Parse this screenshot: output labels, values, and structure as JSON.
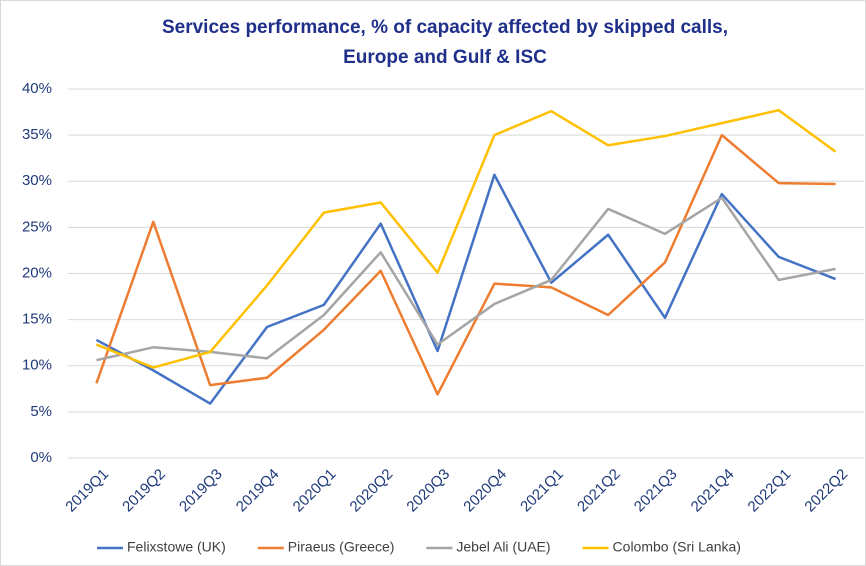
{
  "chart_data": {
    "type": "line",
    "title": [
      "Services performance, % of capacity affected by skipped calls,",
      "Europe and Gulf & ISC"
    ],
    "categories": [
      "2019Q1",
      "2019Q2",
      "2019Q3",
      "2019Q4",
      "2020Q1",
      "2020Q2",
      "2020Q3",
      "2020Q4",
      "2021Q1",
      "2021Q2",
      "2021Q3",
      "2021Q4",
      "2022Q1",
      "2022Q2"
    ],
    "series": [
      {
        "name": "Felixstowe (UK)",
        "color": "#4472c4",
        "values": [
          12.8,
          9.5,
          5.9,
          14.2,
          16.6,
          25.4,
          11.6,
          30.7,
          19.0,
          24.2,
          15.2,
          28.6,
          21.8,
          19.4
        ]
      },
      {
        "name": "Piraeus (Greece)",
        "color": "#ed7d31",
        "values": [
          8.1,
          25.6,
          7.9,
          8.7,
          13.9,
          20.3,
          6.9,
          18.9,
          18.5,
          15.5,
          21.2,
          35.0,
          29.8,
          29.7
        ]
      },
      {
        "name": "Jebel Ali (UAE)",
        "color": "#a5a5a5",
        "values": [
          10.6,
          12.0,
          11.5,
          10.8,
          15.5,
          22.3,
          12.3,
          16.7,
          19.3,
          27.0,
          24.3,
          28.2,
          19.3,
          20.5
        ]
      },
      {
        "name": "Colombo (Sri Lanka)",
        "color": "#ffc000",
        "values": [
          12.3,
          9.8,
          11.5,
          18.7,
          26.6,
          27.7,
          20.1,
          35.0,
          37.6,
          33.9,
          34.9,
          36.3,
          37.7,
          33.2
        ]
      }
    ],
    "ylim": [
      0,
      40
    ],
    "yticks": [
      {
        "value": 0,
        "label": "0%"
      },
      {
        "value": 5,
        "label": "5%"
      },
      {
        "value": 10,
        "label": "10%"
      },
      {
        "value": 15,
        "label": "15%"
      },
      {
        "value": 20,
        "label": "20%"
      },
      {
        "value": 25,
        "label": "25%"
      },
      {
        "value": 30,
        "label": "30%"
      },
      {
        "value": 35,
        "label": "35%"
      },
      {
        "value": 40,
        "label": "40%"
      }
    ],
    "grid": true,
    "legend": "bottom"
  }
}
